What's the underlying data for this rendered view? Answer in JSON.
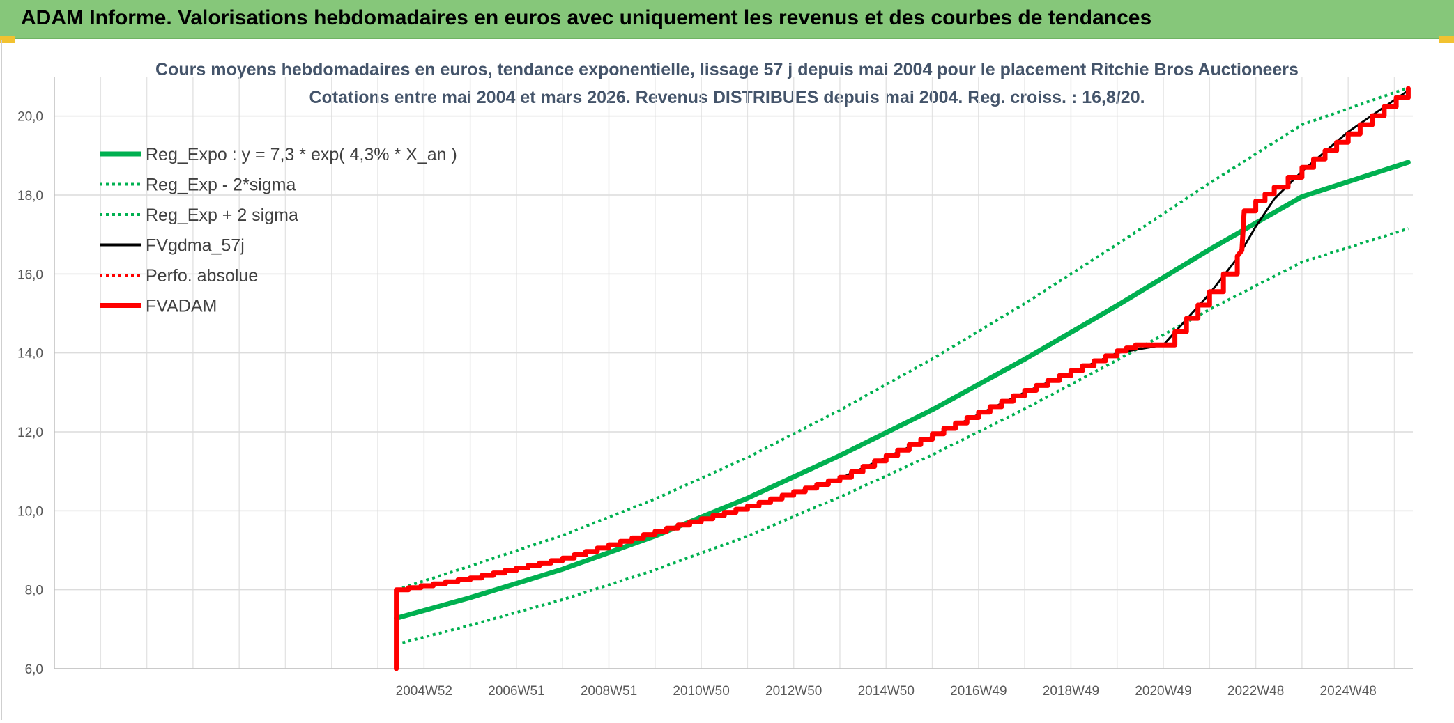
{
  "banner": {
    "title": "ADAM Informe. Valorisations hebdomadaires en euros avec uniquement les revenus et des courbes de tendances",
    "background": "#86c77a"
  },
  "chart_data": {
    "type": "line",
    "title": "Cours moyens hebdomadaires en euros, tendance exponentielle, lissage 57 j depuis mai 2004 pour le placement Ritchie Bros Auctioneers",
    "subtitle": "Cotations entre mai 2004 et mars 2026. Revenus DISTRIBUES depuis mai 2004. Reg. croiss. : 16,8/20.",
    "xlabel": "",
    "ylabel": "",
    "ylim": [
      6,
      21
    ],
    "xlim": [
      1997.0,
      2026.4
    ],
    "y_ticks": [
      "6,0",
      "8,0",
      "10,0",
      "12,0",
      "14,0",
      "16,0",
      "18,0",
      "20,0"
    ],
    "y_tick_values": [
      6,
      8,
      10,
      12,
      14,
      16,
      18,
      20
    ],
    "x_ticks": [
      "2004W52",
      "2006W51",
      "2008W51",
      "2010W50",
      "2012W50",
      "2014W50",
      "2016W49",
      "2018W49",
      "2020W49",
      "2022W48",
      "2024W48"
    ],
    "x_tick_values": [
      2005,
      2007,
      2009,
      2011,
      2013,
      2015,
      2017,
      2019,
      2021,
      2023,
      2025
    ],
    "x_gridlines": [
      1998,
      1999,
      2000,
      2001,
      2002,
      2003,
      2004,
      2005,
      2006,
      2007,
      2008,
      2009,
      2010,
      2011,
      2012,
      2013,
      2014,
      2015,
      2016,
      2017,
      2018,
      2019,
      2020,
      2021,
      2022,
      2023,
      2024,
      2025,
      2026
    ],
    "grid": true,
    "legend_position": "top-left",
    "series": [
      {
        "name": "Reg_Expo : y = 7,3 * exp( 4,3% *  X_an )",
        "color": "#00b050",
        "style": "solid-thick",
        "x": [
          2004.4,
          2006,
          2008,
          2010,
          2012,
          2014,
          2016,
          2018,
          2020,
          2022,
          2024,
          2026.3
        ],
        "values": [
          7.28,
          7.8,
          8.52,
          9.36,
          10.32,
          11.4,
          12.56,
          13.84,
          15.2,
          16.62,
          17.96,
          18.83
        ]
      },
      {
        "name": "Reg_Exp - 2*sigma",
        "color": "#00b050",
        "style": "dotted",
        "x": [
          2004.4,
          2006,
          2008,
          2010,
          2012,
          2014,
          2016,
          2018,
          2020,
          2022,
          2024,
          2026.3
        ],
        "values": [
          6.62,
          7.1,
          7.75,
          8.5,
          9.36,
          10.35,
          11.42,
          12.58,
          13.82,
          15.1,
          16.3,
          17.15
        ]
      },
      {
        "name": "Reg_Exp + 2 sigma",
        "color": "#00b050",
        "style": "dotted",
        "x": [
          2004.4,
          2006,
          2008,
          2010,
          2012,
          2014,
          2016,
          2018,
          2020,
          2022,
          2024,
          2026.3
        ],
        "values": [
          8.0,
          8.6,
          9.38,
          10.3,
          11.35,
          12.55,
          13.85,
          15.25,
          16.75,
          18.3,
          19.78,
          20.72
        ]
      },
      {
        "name": "FVgdma_57j",
        "color": "#000000",
        "style": "solid",
        "x": [
          2004.4,
          2006,
          2008,
          2010,
          2012,
          2014,
          2016,
          2018,
          2020,
          2021,
          2022,
          2022.6,
          2023,
          2023.4,
          2024,
          2025,
          2026.3
        ],
        "values": [
          8.0,
          8.25,
          8.75,
          9.45,
          10.08,
          10.82,
          11.88,
          13.0,
          14.0,
          14.2,
          15.5,
          16.4,
          17.2,
          17.9,
          18.6,
          19.6,
          20.65
        ]
      },
      {
        "name": "Perfo. absolue",
        "color": "#ff0000",
        "style": "dotted",
        "x": [],
        "values": []
      },
      {
        "name": "FVADAM",
        "color": "#ff0000",
        "style": "solid-thick",
        "x": [
          2004.4,
          2004.4,
          2006,
          2008,
          2010,
          2012,
          2014,
          2016,
          2018,
          2020,
          2020.4,
          2021,
          2022,
          2022.6,
          2022.7,
          2022.75,
          2023,
          2023.4,
          2024,
          2025,
          2026.3
        ],
        "values": [
          6.0,
          8.0,
          8.3,
          8.8,
          9.48,
          10.12,
          10.85,
          11.95,
          13.05,
          14.05,
          14.2,
          14.2,
          15.55,
          16.45,
          16.6,
          17.6,
          17.85,
          18.2,
          18.7,
          19.55,
          20.7
        ]
      }
    ]
  }
}
